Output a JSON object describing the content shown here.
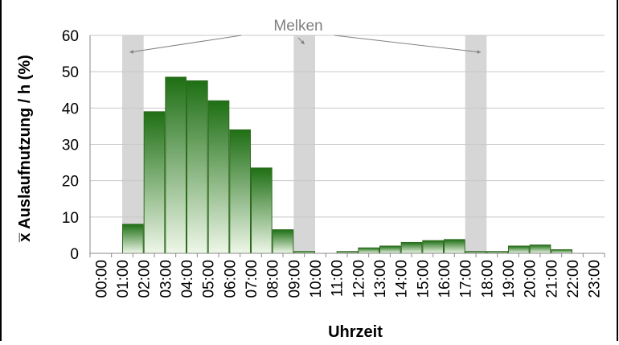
{
  "chart_data": {
    "type": "bar",
    "title": "",
    "xlabel": "Uhrzeit",
    "ylabel": "x̅ Auslaufnutzung / h (%)",
    "ylim": [
      0,
      60
    ],
    "yticks": [
      0,
      10,
      20,
      30,
      40,
      50,
      60
    ],
    "grid": true,
    "categories": [
      "00:00",
      "01:00",
      "02:00",
      "03:00",
      "04:00",
      "05:00",
      "06:00",
      "07:00",
      "08:00",
      "09:00",
      "10:00",
      "11:00",
      "12:00",
      "13:00",
      "14:00",
      "15:00",
      "16:00",
      "17:00",
      "18:00",
      "19:00",
      "20:00",
      "21:00",
      "22:00",
      "23:00"
    ],
    "values": [
      0,
      8,
      39,
      48.5,
      47.5,
      42,
      34,
      23.5,
      6.5,
      0.5,
      0,
      0.5,
      1.5,
      2,
      3,
      3.5,
      3.8,
      0.5,
      0.5,
      2,
      2.3,
      1,
      0,
      0
    ],
    "milking": {
      "label": "Melken",
      "periods": [
        {
          "start": "01:00",
          "end": "02:00"
        },
        {
          "start": "09:00",
          "end": "10:00"
        },
        {
          "start": "17:00",
          "end": "18:00"
        }
      ]
    },
    "colors": {
      "bar_top": "#1e6f14",
      "bar_bottom": "#eef7e8",
      "bar_stroke": "#2f6b1f",
      "milking_band": "#d6d6d6",
      "annotation": "#808080"
    }
  }
}
